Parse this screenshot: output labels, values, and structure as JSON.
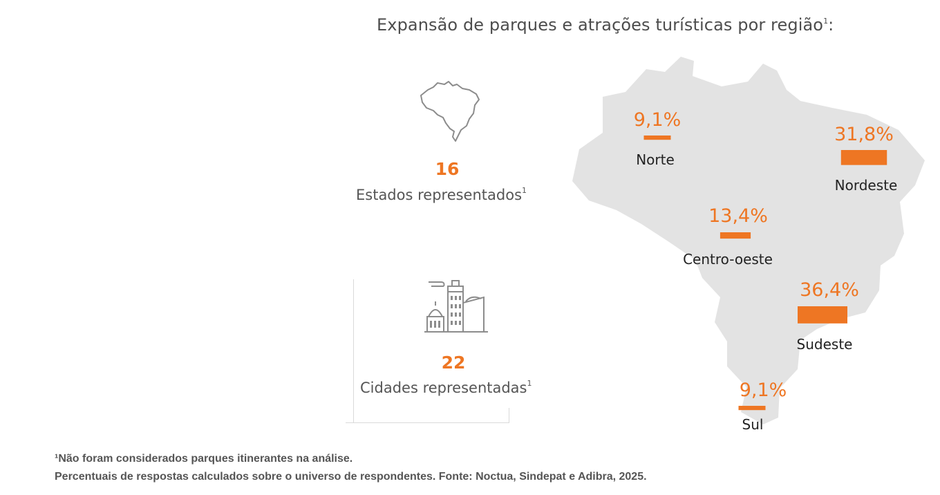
{
  "title": "Expansão de parques e atrações turísticas por região",
  "title_sup": "1",
  "title_suffix": ":",
  "stats": [
    {
      "icon": "brazil-outline-icon",
      "value": "16",
      "label": "Estados representados",
      "sup": "1"
    },
    {
      "icon": "city-buildings-icon",
      "value": "22",
      "label": "Cidades representadas",
      "sup": "1"
    }
  ],
  "colors": {
    "accent": "#ee7623",
    "map_fill": "#e3e3e3",
    "text": "#4d4d4d"
  },
  "chart_data": {
    "type": "bar",
    "categories": [
      "Norte",
      "Nordeste",
      "Centro-oeste",
      "Sudeste",
      "Sul"
    ],
    "values": [
      9.1,
      31.8,
      13.4,
      36.4,
      9.1
    ],
    "value_labels": [
      "9,1%",
      "31,8%",
      "13,4%",
      "36,4%",
      "9,1%"
    ],
    "unit": "%",
    "bar_color": "#ee7623"
  },
  "footnotes": [
    "¹Não foram considerados parques itinerantes na análise.",
    "Percentuais de respostas calculados sobre o universo de respondentes. Fonte: Noctua, Sindepat e Adibra, 2025."
  ]
}
